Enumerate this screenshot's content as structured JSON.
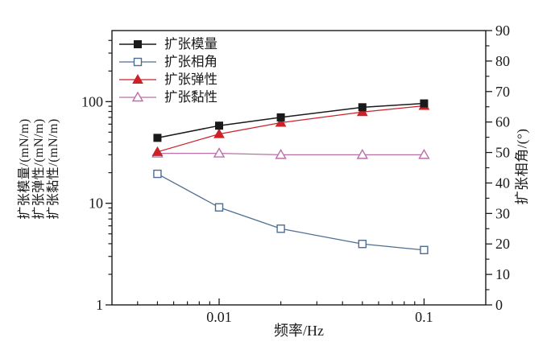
{
  "chart_data": {
    "type": "line",
    "x": [
      0.005,
      0.01,
      0.02,
      0.05,
      0.1
    ],
    "x_axis": {
      "label": "频率/Hz",
      "scale": "log",
      "min": 0.003,
      "max": 0.2,
      "major_ticks": [
        0.01,
        0.1
      ],
      "major_tick_labels": [
        "0.01",
        "0.1"
      ]
    },
    "y_left_axis": {
      "labels": [
        "扩张模量/(mN/m)",
        "扩张弹性/(mN/m)",
        "扩张黏性/(mN/m)"
      ],
      "scale": "log",
      "min": 1,
      "max": 500,
      "major_ticks": [
        1,
        10,
        100
      ],
      "major_tick_labels": [
        "1",
        "10",
        "100"
      ]
    },
    "y_right_axis": {
      "label": "扩张相角/(°)",
      "scale": "linear",
      "min": 0,
      "max": 90,
      "major_tick_step": 10,
      "minor_tick_step": 5,
      "major_tick_labels": [
        "0",
        "10",
        "20",
        "30",
        "40",
        "50",
        "60",
        "70",
        "80",
        "90"
      ]
    },
    "grid": false,
    "legend_position": "top-left-inside",
    "series": [
      {
        "name": "扩张模量",
        "slug": "modulus",
        "axis": "left",
        "marker": "square-filled",
        "color": "#1a1a1a",
        "values": [
          44,
          58,
          70,
          88,
          96
        ]
      },
      {
        "name": "扩张相角",
        "slug": "phase-angle",
        "axis": "right",
        "marker": "square-open",
        "color": "#4d6d92",
        "values": [
          43,
          32,
          25,
          20,
          18
        ]
      },
      {
        "name": "扩张弹性",
        "slug": "elasticity",
        "axis": "left",
        "marker": "triangle-filled",
        "color": "#cc2128",
        "values": [
          32,
          48,
          62,
          79,
          91
        ]
      },
      {
        "name": "扩张黏性",
        "slug": "viscosity",
        "axis": "left",
        "marker": "triangle-open",
        "color": "#bb6fa8",
        "values": [
          31,
          31,
          30,
          30,
          30
        ]
      }
    ],
    "colors": {
      "axis_ink": "#1a1a1a",
      "background": "#ffffff"
    }
  }
}
